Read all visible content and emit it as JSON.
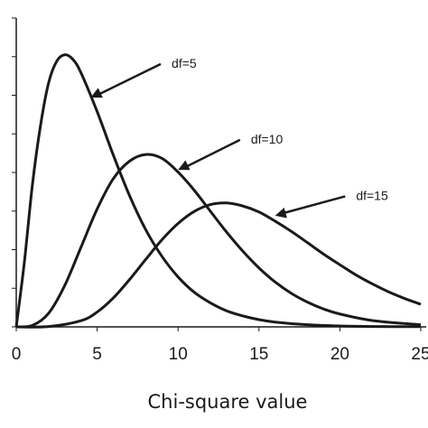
{
  "chart_data": {
    "type": "line",
    "title": "",
    "xlabel": "Chi-square value",
    "ylabel": "",
    "xlim": [
      0,
      25
    ],
    "ylim": [
      0,
      0.175
    ],
    "x_ticks": [
      "0",
      "5",
      "10",
      "15",
      "20",
      "25"
    ],
    "grid": false,
    "series": [
      {
        "df": 5,
        "x": [
          0,
          0.5,
          1,
          1.5,
          2,
          2.5,
          3,
          3.5,
          4,
          5,
          6,
          7,
          8,
          9,
          10,
          11,
          12,
          13,
          14,
          15,
          16,
          18,
          20,
          22,
          25
        ],
        "y": [
          0,
          0.0366,
          0.0807,
          0.1141,
          0.1383,
          0.1505,
          0.1542,
          0.1516,
          0.144,
          0.122,
          0.0973,
          0.0744,
          0.0551,
          0.04,
          0.0283,
          0.0196,
          0.0136,
          0.0091,
          0.0062,
          0.0041,
          0.0027,
          0.0012,
          0.0005,
          0.0002,
          0.0001
        ]
      },
      {
        "df": 10,
        "x": [
          0,
          1,
          2,
          3,
          4,
          5,
          6,
          7,
          8,
          9,
          10,
          11,
          12,
          13,
          14,
          15,
          16,
          17,
          18,
          19,
          20,
          22,
          25
        ],
        "y": [
          0,
          0.0008,
          0.0077,
          0.0235,
          0.0451,
          0.0668,
          0.084,
          0.0939,
          0.0977,
          0.0955,
          0.0877,
          0.0774,
          0.0655,
          0.0537,
          0.0429,
          0.0334,
          0.0254,
          0.019,
          0.014,
          0.0101,
          0.0073,
          0.0036,
          0.0012
        ]
      },
      {
        "df": 15,
        "x": [
          0,
          2,
          4,
          5,
          6,
          7,
          8,
          9,
          10,
          11,
          12,
          13,
          14,
          15,
          16,
          17,
          18,
          19,
          20,
          21,
          22,
          23,
          24,
          25
        ],
        "y": [
          0,
          0.0002,
          0.0035,
          0.0084,
          0.0164,
          0.0268,
          0.0382,
          0.0493,
          0.0586,
          0.0654,
          0.0693,
          0.0702,
          0.0685,
          0.0651,
          0.0599,
          0.0541,
          0.0477,
          0.0412,
          0.0352,
          0.0294,
          0.0244,
          0.0199,
          0.0161,
          0.0128
        ]
      }
    ],
    "annotations": [
      {
        "text": "df=5",
        "series_df": 5,
        "point_x": 4.6,
        "point_y": 0.13,
        "text_x": 9.6,
        "text_y": 0.15
      },
      {
        "text": "df=10",
        "series_df": 10,
        "point_x": 10.0,
        "point_y": 0.089,
        "text_x": 14.5,
        "text_y": 0.107
      },
      {
        "text": "df=15",
        "series_df": 15,
        "point_x": 16.0,
        "point_y": 0.063,
        "text_x": 21.0,
        "text_y": 0.075
      }
    ]
  }
}
